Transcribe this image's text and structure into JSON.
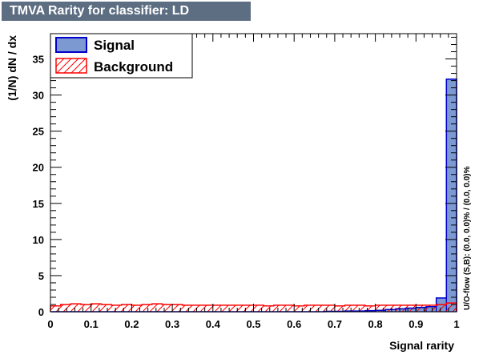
{
  "title": "TMVA Rarity for classifier: LD",
  "colors": {
    "title_bg": "#5e6e82",
    "signal_fill": "#7d99d1",
    "signal_line": "#0000cc",
    "background_line": "#ff0000"
  },
  "chart_data": {
    "type": "histogram",
    "xlabel": "Signal rarity",
    "ylabel": "(1/N) dN / dx",
    "xlim": [
      0,
      1
    ],
    "ylim": [
      0,
      38.5
    ],
    "xticks": [
      "0",
      "0.1",
      "0.2",
      "0.3",
      "0.4",
      "0.5",
      "0.6",
      "0.7",
      "0.8",
      "0.9",
      "1"
    ],
    "yticks": [
      "0",
      "5",
      "10",
      "15",
      "20",
      "25",
      "30",
      "35"
    ],
    "legend": {
      "position": "top-left",
      "entries": [
        "Signal",
        "Background"
      ]
    },
    "overflow_note": "U/O-flow (S,B): (0.0, 0.0)% / (0.0, 0.0)%",
    "bin_edges_start": 0.0,
    "bin_width": 0.025,
    "series": [
      {
        "name": "Signal",
        "style": "filled",
        "values": [
          0,
          0,
          0,
          0,
          0,
          0,
          0,
          0,
          0,
          0,
          0,
          0,
          0,
          0,
          0,
          0,
          0,
          0,
          0,
          0,
          0,
          0,
          0,
          0,
          0,
          0,
          0,
          0.05,
          0.05,
          0.1,
          0.1,
          0.15,
          0.2,
          0.3,
          0.4,
          0.5,
          0.6,
          0.7,
          1.9,
          32.2
        ]
      },
      {
        "name": "Background",
        "style": "hatched",
        "values": [
          0.8,
          1.0,
          1.1,
          1.0,
          1.1,
          1.0,
          0.9,
          1.0,
          0.9,
          1.0,
          1.1,
          1.0,
          1.0,
          0.9,
          0.9,
          0.9,
          0.9,
          0.9,
          0.9,
          0.9,
          0.9,
          0.8,
          0.9,
          0.9,
          0.8,
          0.9,
          0.9,
          0.9,
          0.8,
          0.9,
          0.9,
          0.8,
          0.9,
          0.9,
          0.9,
          0.9,
          0.9,
          0.9,
          1.0,
          1.2
        ]
      }
    ]
  }
}
